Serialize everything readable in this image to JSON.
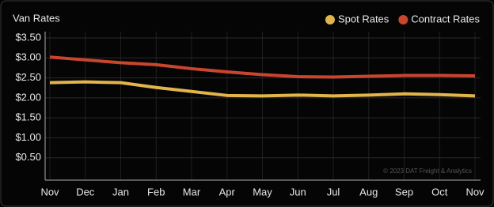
{
  "chart_data": {
    "type": "line",
    "title": "Van Rates",
    "categories": [
      "Nov",
      "Dec",
      "Jan",
      "Feb",
      "Mar",
      "Apr",
      "May",
      "Jun",
      "Jul",
      "Aug",
      "Sep",
      "Oct",
      "Nov"
    ],
    "series": [
      {
        "name": "Spot Rates",
        "color": "#e2b54a",
        "values": [
          2.38,
          2.4,
          2.38,
          2.26,
          2.16,
          2.06,
          2.05,
          2.07,
          2.05,
          2.07,
          2.1,
          2.08,
          2.05
        ]
      },
      {
        "name": "Contract Rates",
        "color": "#c9452e",
        "values": [
          3.02,
          2.95,
          2.88,
          2.83,
          2.73,
          2.65,
          2.58,
          2.53,
          2.52,
          2.54,
          2.56,
          2.56,
          2.55
        ]
      }
    ],
    "ylim": [
      0,
      3.5
    ],
    "yticks": [
      {
        "value": 0.5,
        "label": "$0.50"
      },
      {
        "value": 1,
        "label": "$1.00"
      },
      {
        "value": 1.5,
        "label": "$1.50"
      },
      {
        "value": 2,
        "label": "$2.00"
      },
      {
        "value": 2.5,
        "label": "$2.50"
      },
      {
        "value": 3,
        "label": "$3.00"
      },
      {
        "value": 3.5,
        "label": "$3.50"
      }
    ],
    "grid": true,
    "legend": "top-right",
    "annotation": "© 2023 DAT Freight & Analytics"
  }
}
